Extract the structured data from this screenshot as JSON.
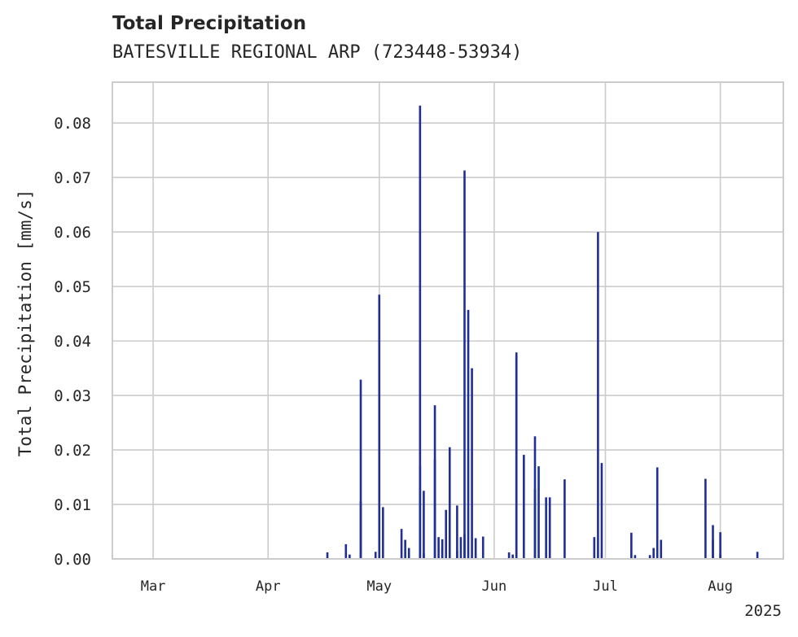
{
  "chart_data": {
    "type": "bar",
    "title": "Total Precipitation",
    "subtitle": "BATESVILLE REGIONAL ARP (723448-53934)",
    "ylabel": "Total Precipitation [mm/s]",
    "xlabel": "",
    "year_label": "2025",
    "x_tick_labels": [
      "Mar",
      "Apr",
      "May",
      "Jun",
      "Jul",
      "Aug"
    ],
    "x_tick_dates": [
      "2025-03-01",
      "2025-04-01",
      "2025-05-01",
      "2025-06-01",
      "2025-07-01",
      "2025-08-01"
    ],
    "xlim": [
      "2025-02-18",
      "2025-08-18"
    ],
    "ylim": [
      0,
      0.0875
    ],
    "y_ticks": [
      0.0,
      0.01,
      0.02,
      0.03,
      0.04,
      0.05,
      0.06,
      0.07,
      0.08
    ],
    "y_tick_labels": [
      "0.00",
      "0.01",
      "0.02",
      "0.03",
      "0.04",
      "0.05",
      "0.06",
      "0.07",
      "0.08"
    ],
    "grid": true,
    "bar_color": "#1f2f96",
    "x": [
      "2025-04-17",
      "2025-04-22",
      "2025-04-23",
      "2025-04-26",
      "2025-04-26",
      "2025-04-30",
      "2025-05-01",
      "2025-05-02",
      "2025-05-07",
      "2025-05-08",
      "2025-05-09",
      "2025-05-12",
      "2025-05-12",
      "2025-05-13",
      "2025-05-13",
      "2025-05-16",
      "2025-05-16",
      "2025-05-17",
      "2025-05-18",
      "2025-05-18",
      "2025-05-19",
      "2025-05-20",
      "2025-05-22",
      "2025-05-22",
      "2025-05-23",
      "2025-05-24",
      "2025-05-24",
      "2025-05-25",
      "2025-05-26",
      "2025-05-27",
      "2025-05-29",
      "2025-06-05",
      "2025-06-06",
      "2025-06-07",
      "2025-06-07",
      "2025-06-09",
      "2025-06-12",
      "2025-06-12",
      "2025-06-13",
      "2025-06-15",
      "2025-06-16",
      "2025-06-20",
      "2025-06-28",
      "2025-06-29",
      "2025-06-30",
      "2025-07-08",
      "2025-07-09",
      "2025-07-13",
      "2025-07-14",
      "2025-07-15",
      "2025-07-16",
      "2025-07-28",
      "2025-07-30",
      "2025-07-30",
      "2025-08-01",
      "2025-08-01",
      "2025-08-11"
    ],
    "values": [
      0.0012,
      0.0027,
      0.0008,
      0.0105,
      0.0329,
      0.0013,
      0.0485,
      0.0095,
      0.0055,
      0.0035,
      0.002,
      0.0832,
      0.017,
      0.0125,
      0.001,
      0.0282,
      0.0182,
      0.004,
      0.0036,
      0.002,
      0.009,
      0.0205,
      0.0098,
      0.0015,
      0.004,
      0.0713,
      0.0045,
      0.0457,
      0.035,
      0.0038,
      0.0041,
      0.0012,
      0.0008,
      0.0373,
      0.0379,
      0.0191,
      0.0225,
      0.0128,
      0.017,
      0.0113,
      0.0113,
      0.0146,
      0.004,
      0.06,
      0.0176,
      0.0048,
      0.0007,
      0.0007,
      0.002,
      0.0168,
      0.0035,
      0.0147,
      0.0062,
      0.0035,
      0.0049,
      0.0008,
      0.0013
    ]
  }
}
